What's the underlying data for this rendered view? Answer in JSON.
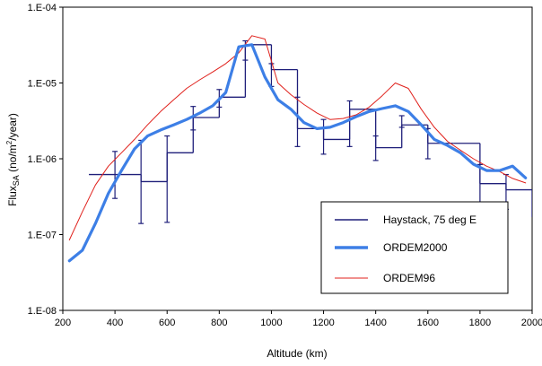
{
  "chart_data": {
    "type": "line",
    "xlabel": "Altitude (km)",
    "ylabel": "Flux_SA (no/m^2/year)",
    "ylabel_parts": {
      "main": "Flux",
      "sub": "SA",
      "mid": " (no/m",
      "sup": "2",
      "end": "/year)"
    },
    "xlim": [
      200,
      2000
    ],
    "ylim": [
      1e-08,
      0.0001
    ],
    "yscale": "log",
    "x_ticks": [
      200,
      400,
      600,
      800,
      1000,
      1200,
      1400,
      1600,
      1800,
      2000
    ],
    "x_tick_labels": [
      "200",
      "400",
      "600",
      "800",
      "1000",
      "1200",
      "1400",
      "1600",
      "1800",
      "2000"
    ],
    "y_ticks": [
      1e-08,
      1e-07,
      1e-06,
      1e-05,
      0.0001
    ],
    "y_tick_labels": [
      "1.E-08",
      "1.E-07",
      "1.E-06",
      "1.E-05",
      "1.E-04"
    ],
    "grid": false,
    "legend_position": "lower-right",
    "series": [
      {
        "name": "Haystack, 75 deg E",
        "style": "step-histogram-with-error-bars",
        "color": "#1f1f7a",
        "bin_width": 100,
        "bins": [
          {
            "x": 350,
            "y": 6.2e-07
          },
          {
            "x": 450,
            "y": 6.2e-07
          },
          {
            "x": 550,
            "y": 5e-07
          },
          {
            "x": 650,
            "y": 1.2e-06
          },
          {
            "x": 750,
            "y": 3.5e-06
          },
          {
            "x": 850,
            "y": 6.5e-06
          },
          {
            "x": 950,
            "y": 3.2e-05
          },
          {
            "x": 1050,
            "y": 1.5e-05
          },
          {
            "x": 1150,
            "y": 2.5e-06
          },
          {
            "x": 1250,
            "y": 1.8e-06
          },
          {
            "x": 1350,
            "y": 4.5e-06
          },
          {
            "x": 1450,
            "y": 1.4e-06
          },
          {
            "x": 1550,
            "y": 2.8e-06
          },
          {
            "x": 1650,
            "y": 1.6e-06
          },
          {
            "x": 1750,
            "y": 1.6e-06
          },
          {
            "x": 1850,
            "y": 4.7e-07
          },
          {
            "x": 1950,
            "y": 3.9e-07
          },
          {
            "x": 2050,
            "y": 1.7e-07
          }
        ],
        "error_bars": [
          {
            "x": 400,
            "y": 6.2e-07,
            "low": 3e-07,
            "high": 1.25e-06
          },
          {
            "x": 500,
            "y": 5e-07,
            "low": 1.4e-07,
            "high": 1.75e-06
          },
          {
            "x": 600,
            "y": 1.2e-06,
            "low": 1.45e-07,
            "high": 2e-06
          },
          {
            "x": 700,
            "y": 3.5e-06,
            "low": 2.4e-06,
            "high": 4.9e-06
          },
          {
            "x": 800,
            "y": 6.5e-06,
            "low": 4.8e-06,
            "high": 8.2e-06
          },
          {
            "x": 900,
            "y": 3.2e-05,
            "low": 2e-05,
            "high": 3.6e-05
          },
          {
            "x": 1000,
            "y": 1.5e-05,
            "low": 9e-06,
            "high": 1.8e-05
          },
          {
            "x": 1100,
            "y": 2.5e-06,
            "low": 1.45e-06,
            "high": 6.5e-06
          },
          {
            "x": 1200,
            "y": 1.8e-06,
            "low": 1.15e-06,
            "high": 3.3e-06
          },
          {
            "x": 1300,
            "y": 4.5e-06,
            "low": 1.45e-06,
            "high": 5.8e-06
          },
          {
            "x": 1400,
            "y": 1.4e-06,
            "low": 9.5e-07,
            "high": 2e-06
          },
          {
            "x": 1500,
            "y": 2.8e-06,
            "low": 2.6e-06,
            "high": 3.7e-06
          },
          {
            "x": 1600,
            "y": 1.6e-06,
            "low": 1e-06,
            "high": 2.5e-06
          },
          {
            "x": 1800,
            "y": 4.7e-07,
            "low": 2.55e-07,
            "high": 8.4e-07
          },
          {
            "x": 1900,
            "y": 3.9e-07,
            "low": 2.15e-07,
            "high": 6.2e-07
          }
        ]
      },
      {
        "name": "ORDEM2000",
        "style": "line",
        "color": "#3d7fe6",
        "x": [
          225,
          275,
          325,
          375,
          425,
          475,
          525,
          575,
          625,
          675,
          725,
          775,
          825,
          875,
          925,
          975,
          1025,
          1075,
          1125,
          1175,
          1225,
          1275,
          1325,
          1375,
          1425,
          1475,
          1525,
          1575,
          1625,
          1675,
          1725,
          1775,
          1825,
          1875,
          1925,
          1975
        ],
        "y": [
          4.5e-08,
          6.2e-08,
          1.4e-07,
          3.5e-07,
          7e-07,
          1.35e-06,
          2e-06,
          2.4e-06,
          2.8e-06,
          3.3e-06,
          4e-06,
          5e-06,
          7.5e-06,
          3e-05,
          3.2e-05,
          1.2e-05,
          6e-06,
          4.5e-06,
          3e-06,
          2.5e-06,
          2.6e-06,
          3e-06,
          3.6e-06,
          4.2e-06,
          4.6e-06,
          5e-06,
          4.2e-06,
          2.8e-06,
          1.8e-06,
          1.5e-06,
          1.2e-06,
          8.5e-07,
          7e-07,
          7e-07,
          8e-07,
          5.6e-07
        ]
      },
      {
        "name": "ORDEM96",
        "style": "line",
        "color": "#e0201b",
        "x": [
          225,
          275,
          325,
          375,
          425,
          475,
          525,
          575,
          625,
          675,
          725,
          775,
          825,
          875,
          925,
          975,
          1025,
          1075,
          1125,
          1175,
          1225,
          1275,
          1325,
          1375,
          1425,
          1475,
          1525,
          1575,
          1625,
          1675,
          1725,
          1775,
          1825,
          1875,
          1925,
          1975
        ],
        "y": [
          8.5e-08,
          2e-07,
          4.5e-07,
          8e-07,
          1.2e-06,
          1.8e-06,
          2.8e-06,
          4.2e-06,
          6e-06,
          8.5e-06,
          1.1e-05,
          1.4e-05,
          1.8e-05,
          2.5e-05,
          4.2e-05,
          3.8e-05,
          1e-05,
          7e-06,
          5.2e-06,
          4e-06,
          3.3e-06,
          3.4e-06,
          3.8e-06,
          4.8e-06,
          6.8e-06,
          1e-05,
          8.5e-06,
          4.5e-06,
          2.6e-06,
          1.7e-06,
          1.3e-06,
          1e-06,
          8e-07,
          6.8e-07,
          5.5e-07,
          4.8e-07
        ]
      }
    ]
  }
}
